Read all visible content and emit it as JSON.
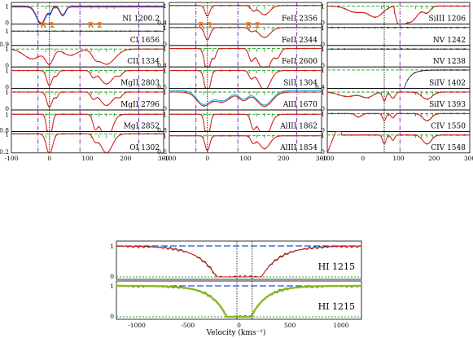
{
  "chart_data": {
    "type": "line",
    "xlabel": "Velocity (kms⁻¹)",
    "region_labels": [
      "R 1",
      "R 2"
    ],
    "grids": {
      "small": {
        "xlim": [
          -100,
          300
        ],
        "xticks": [
          "-100",
          "0",
          "100",
          "200",
          "300"
        ],
        "velocity_markers": [
          -30,
          0,
          80,
          235
        ],
        "columns": [
          {
            "panels": [
              {
                "label": "NI 1200.2",
                "ymin": "0",
                "ylim": [
                  0,
                  1.2
                ],
                "type": "ni"
              },
              {
                "label": "CI 1656",
                "ymin": "0.9",
                "ylim": [
                  0.9,
                  1.05
                ],
                "type": "flat"
              },
              {
                "label": "CII 1334",
                "ymin": "0",
                "ylim": [
                  0,
                  1.2
                ],
                "type": "cii"
              },
              {
                "label": "MgII 2803",
                "ymin": "0",
                "ylim": [
                  0,
                  1.2
                ],
                "type": "mgii"
              },
              {
                "label": "MgII 2796",
                "ymin": "0",
                "ylim": [
                  0,
                  1.2
                ],
                "type": "mgii"
              },
              {
                "label": "MgI 2852",
                "ymin": "0.8",
                "ylim": [
                  0.8,
                  1.05
                ],
                "type": "weak"
              },
              {
                "label": "OI 1302",
                "ymin": "0.2",
                "ylim": [
                  0.2,
                  1.1
                ],
                "type": "oi"
              }
            ]
          },
          {
            "panels": [
              {
                "label": "FeII 2356",
                "ymin": "0.4",
                "ylim": [
                  0.4,
                  1.1
                ],
                "type": "weak"
              },
              {
                "label": "FeII 2344",
                "ymin": "0",
                "ylim": [
                  0,
                  1.2
                ],
                "type": "feii"
              },
              {
                "label": "FeII 2600",
                "ymin": "0.4",
                "ylim": [
                  0.4,
                  1.1
                ],
                "type": "mgii"
              },
              {
                "label": "SiII 1304",
                "ymin": "0.5",
                "ylim": [
                  0.5,
                  1.1
                ],
                "type": "feii"
              },
              {
                "label": "AlII 1670",
                "ymin": "0",
                "ylim": [
                  0,
                  1.2
                ],
                "type": "alii"
              },
              {
                "label": "AlIII 1862",
                "ymin": "0.8",
                "ylim": [
                  0.8,
                  1.05
                ],
                "type": "weak"
              },
              {
                "label": "AlIII 1854",
                "ymin": "0.6",
                "ylim": [
                  0.6,
                  1.1
                ],
                "type": "weak"
              }
            ]
          },
          {
            "xlim": [
              -200,
              300
            ],
            "xticks": [
              "-100",
              "0",
              "100",
              "200",
              "300"
            ],
            "velocity_markers": [
              0,
              55
            ],
            "panels": [
              {
                "label": "SiIII 1206",
                "ymin": "0",
                "ylim": [
                  0,
                  1.2
                ],
                "type": "siiii"
              },
              {
                "label": "NV 1242",
                "ymin": "0",
                "ylim": [
                  0,
                  1.2
                ],
                "type": "flat"
              },
              {
                "label": "NV 1238",
                "ymin": "0",
                "ylim": [
                  0,
                  1.2
                ],
                "type": "flat"
              },
              {
                "label": "SiIV 1402",
                "ymin": "0.4",
                "ylim": [
                  0.4,
                  1.1
                ],
                "type": "siiv"
              },
              {
                "label": "SiIV 1393",
                "ymin": "0",
                "ylim": [
                  0,
                  1.2
                ],
                "type": "siiv2"
              },
              {
                "label": "CIV 1550",
                "ymin": "0",
                "ylim": [
                  0,
                  1.2
                ],
                "type": "civ"
              },
              {
                "label": "CIV 1548",
                "ymin": "0",
                "ylim": [
                  0,
                  1.2
                ],
                "type": "civ2"
              }
            ]
          }
        ]
      },
      "large": {
        "xlim": [
          -1200,
          1200
        ],
        "xticks": [
          "-1000",
          "-500",
          "0",
          "500",
          "1000"
        ],
        "panels": [
          {
            "label": "HI 1215",
            "ymin": "0",
            "ymax": "1",
            "type": "hi"
          },
          {
            "label": "HI 1215",
            "ymin": "0",
            "ymax": "1",
            "type": "hi2"
          }
        ]
      }
    },
    "colors": {
      "data": "#000000",
      "fit": "#e0201a",
      "continuum": "#2050e0",
      "zero": "#20a020",
      "vmark": "#7020a0",
      "region": "#f07a1a",
      "model2": "#20b0e0",
      "damped": "#88bb22"
    }
  }
}
